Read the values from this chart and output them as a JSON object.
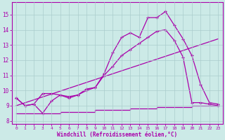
{
  "background_color": "#cceae7",
  "grid_color": "#aacccc",
  "line_color": "#aa00aa",
  "xlabel": "Windchill (Refroidissement éolien,°C)",
  "xlim": [
    -0.5,
    23.5
  ],
  "ylim": [
    7.8,
    15.8
  ],
  "yticks": [
    8,
    9,
    10,
    11,
    12,
    13,
    14,
    15
  ],
  "xticks": [
    0,
    1,
    2,
    3,
    4,
    5,
    6,
    7,
    8,
    9,
    10,
    11,
    12,
    13,
    14,
    15,
    16,
    17,
    18,
    19,
    20,
    21,
    22,
    23
  ],
  "line1_x": [
    0,
    1,
    2,
    3,
    4,
    5,
    6,
    7,
    8,
    9,
    10,
    11,
    12,
    13,
    14,
    15,
    16,
    17,
    18,
    19,
    20,
    21,
    22,
    23
  ],
  "line1_y": [
    9.5,
    9.0,
    9.1,
    9.8,
    9.8,
    9.7,
    9.6,
    9.7,
    10.1,
    10.2,
    11.1,
    12.5,
    13.5,
    13.8,
    13.5,
    14.8,
    14.8,
    15.2,
    14.3,
    13.4,
    12.3,
    10.4,
    9.2,
    9.1
  ],
  "line2_x": [
    0,
    1,
    2,
    3,
    4,
    5,
    6,
    7,
    8,
    9,
    10,
    11,
    12,
    13,
    14,
    15,
    16,
    17,
    18,
    19,
    20,
    21,
    22,
    23
  ],
  "line2_y": [
    9.5,
    9.0,
    9.1,
    8.5,
    9.3,
    9.7,
    9.5,
    9.7,
    10.0,
    10.2,
    11.0,
    11.6,
    12.3,
    12.7,
    13.1,
    13.5,
    13.9,
    14.0,
    13.3,
    12.2,
    9.2,
    9.2,
    9.1,
    9.0
  ],
  "line3_x": [
    0,
    23
  ],
  "line3_y": [
    9.0,
    13.4
  ],
  "line4_x": [
    0,
    1,
    2,
    3,
    4,
    5,
    6,
    7,
    8,
    9,
    10,
    11,
    12,
    13,
    14,
    15,
    16,
    17,
    18,
    19,
    20,
    21,
    22,
    23
  ],
  "line4_y": [
    8.5,
    8.5,
    8.5,
    8.5,
    8.5,
    8.6,
    8.6,
    8.6,
    8.6,
    8.7,
    8.7,
    8.7,
    8.7,
    8.8,
    8.8,
    8.8,
    8.9,
    8.9,
    8.9,
    8.9,
    9.0,
    9.0,
    9.0,
    9.0
  ]
}
